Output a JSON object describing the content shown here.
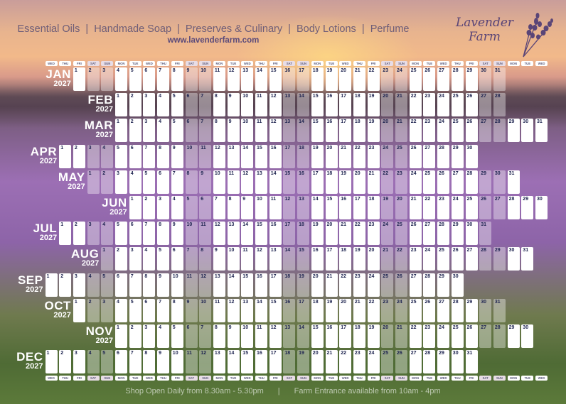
{
  "header": {
    "tagline": "Essential Oils  |  Handmade Soap  |  Preserves & Culinary  |  Body Lotions  |  Perfume",
    "url": "www.lavenderfarm.com"
  },
  "logo": {
    "line1": "Lavender",
    "line2": "Farm",
    "color": "#5a4577"
  },
  "weekdays": [
    "WED",
    "THU",
    "FRI",
    "SAT",
    "SUN",
    "MON",
    "TUE",
    "WED",
    "THU",
    "FRI",
    "SAT",
    "SUN",
    "MON",
    "TUE",
    "WED",
    "THU",
    "FRI",
    "SAT",
    "SUN",
    "MON",
    "TUE",
    "WED",
    "THU",
    "FRI",
    "SAT",
    "SUN",
    "MON",
    "TUE",
    "WED",
    "THU",
    "FRI",
    "SAT",
    "SUN",
    "MON",
    "TUE",
    "WED"
  ],
  "months": [
    {
      "name": "JAN",
      "year": "2027",
      "start_day": "FRI",
      "days": 31
    },
    {
      "name": "FEB",
      "year": "2027",
      "start_day": "MON",
      "days": 28
    },
    {
      "name": "MAR",
      "year": "2027",
      "start_day": "MON",
      "days": 31
    },
    {
      "name": "APR",
      "year": "2027",
      "start_day": "THU",
      "days": 30
    },
    {
      "name": "MAY",
      "year": "2027",
      "start_day": "SAT",
      "days": 31
    },
    {
      "name": "JUN",
      "year": "2027",
      "start_day": "TUE",
      "days": 30
    },
    {
      "name": "JUL",
      "year": "2027",
      "start_day": "THU",
      "days": 31
    },
    {
      "name": "AUG",
      "year": "2027",
      "start_day": "SUN",
      "days": 31
    },
    {
      "name": "SEP",
      "year": "2027",
      "start_day": "WED",
      "days": 30
    },
    {
      "name": "OCT",
      "year": "2027",
      "start_day": "FRI",
      "days": 31
    },
    {
      "name": "NOV",
      "year": "2027",
      "start_day": "MON",
      "days": 30
    },
    {
      "name": "DEC",
      "year": "2027",
      "start_day": "WED",
      "days": 31
    }
  ],
  "footer": {
    "hours": "Shop Open Daily from 8.30am - 5.30pm",
    "separator": "|",
    "entrance": "Farm Entrance available from 10am - 4pm"
  },
  "colors": {
    "day_number": "#1e2450",
    "header_text": "#6e5d78"
  }
}
